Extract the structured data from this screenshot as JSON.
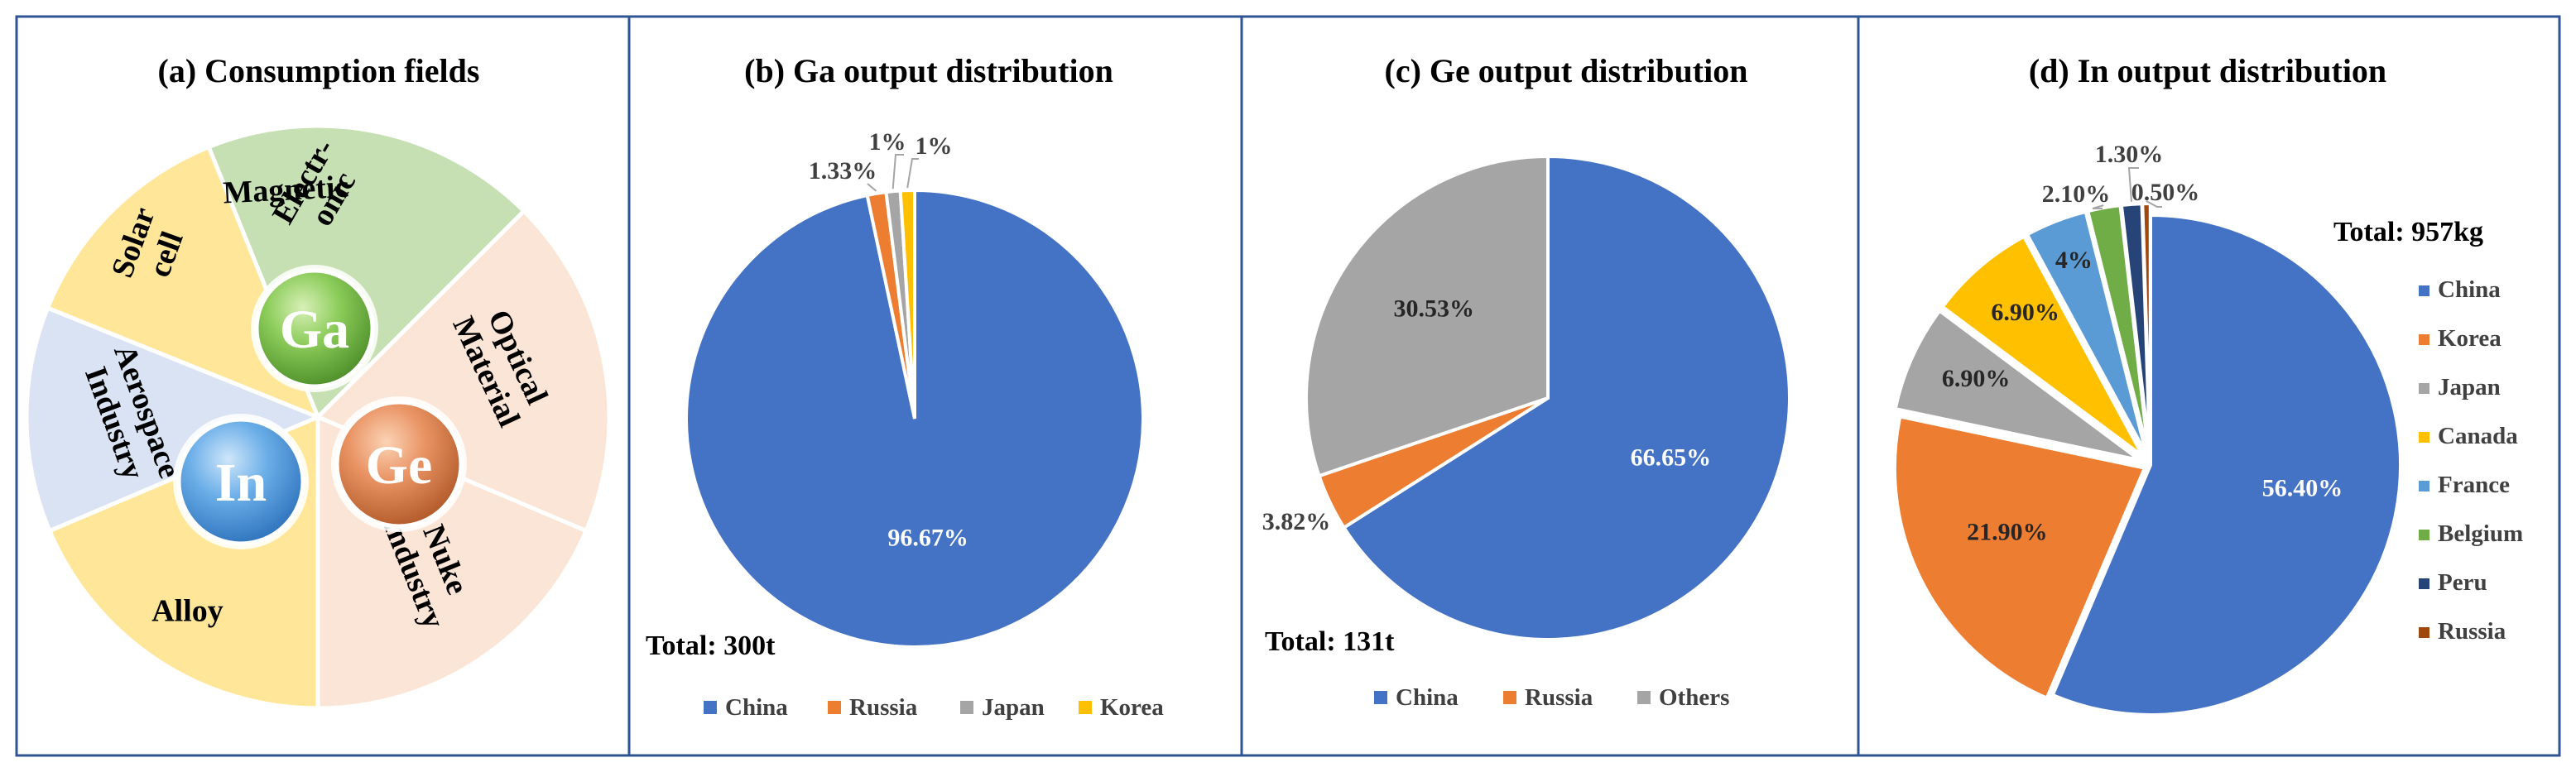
{
  "panel_a": {
    "title": "(a) Consumption fields",
    "segments": [
      {
        "lines": [
          "Magnetic"
        ],
        "color": "#c6e0b4"
      },
      {
        "lines": [
          "Optical",
          "Material"
        ],
        "color": "#fbe5d6"
      },
      {
        "lines": [
          "Nuke",
          "Industry"
        ],
        "color": "#fbe5d6"
      },
      {
        "lines": [
          "Alloy"
        ],
        "color": "#ffe699"
      },
      {
        "lines": [
          "Aerospace",
          "Industry"
        ],
        "color": "#dae3f3"
      },
      {
        "lines": [
          "Solar",
          "cell"
        ],
        "color": "#ffe699"
      },
      {
        "lines": [
          "Electr-",
          "onic"
        ],
        "color": "#ffe699"
      }
    ],
    "elements": {
      "ga": "Ga",
      "ge": "Ge",
      "in": "In"
    }
  },
  "chart_data": [
    {
      "type": "pie",
      "title": "(b) Ga output distribution",
      "total_label": "Total: 300t",
      "slices": [
        {
          "label": "China",
          "value": 96.67,
          "display": "96.67%",
          "color": "#4472c4"
        },
        {
          "label": "Russia",
          "value": 1.33,
          "display": "1.33%",
          "color": "#ed7d31"
        },
        {
          "label": "Japan",
          "value": 1,
          "display": "1%",
          "color": "#a5a5a5"
        },
        {
          "label": "Korea",
          "value": 1,
          "display": "1%",
          "color": "#ffc000"
        }
      ],
      "legend": [
        "China",
        "Russia",
        "Japan",
        "Korea"
      ],
      "legend_position": "bottom"
    },
    {
      "type": "pie",
      "title": "(c) Ge output distribution",
      "total_label": "Total: 131t",
      "slices": [
        {
          "label": "China",
          "value": 66.65,
          "display": "66.65%",
          "color": "#4472c4"
        },
        {
          "label": "Russia",
          "value": 3.82,
          "display": "3.82%",
          "color": "#ed7d31"
        },
        {
          "label": "Others",
          "value": 30.53,
          "display": "30.53%",
          "color": "#a5a5a5"
        }
      ],
      "legend": [
        "China",
        "Russia",
        "Others"
      ],
      "legend_position": "bottom"
    },
    {
      "type": "pie",
      "title": "(d) In output distribution",
      "total_label": "Total: 957kg",
      "slices": [
        {
          "label": "China",
          "value": 56.4,
          "display": "56.40%",
          "color": "#4472c4"
        },
        {
          "label": "Korea",
          "value": 21.9,
          "display": "21.90%",
          "color": "#ed7d31"
        },
        {
          "label": "Japan",
          "value": 6.9,
          "display": "6.90%",
          "color": "#a5a5a5"
        },
        {
          "label": "Canada",
          "value": 6.9,
          "display": "6.90%",
          "color": "#ffc000"
        },
        {
          "label": "France",
          "value": 4,
          "display": "4%",
          "color": "#5b9bd5"
        },
        {
          "label": "Belgium",
          "value": 2.1,
          "display": "2.10%",
          "color": "#70ad47"
        },
        {
          "label": "Peru",
          "value": 1.3,
          "display": "1.30%",
          "color": "#264478"
        },
        {
          "label": "Russia",
          "value": 0.5,
          "display": "0.50%",
          "color": "#9e480e"
        }
      ],
      "legend": [
        "China",
        "Korea",
        "Japan",
        "Canada",
        "France",
        "Belgium",
        "Peru",
        "Russia"
      ],
      "legend_position": "right"
    }
  ]
}
